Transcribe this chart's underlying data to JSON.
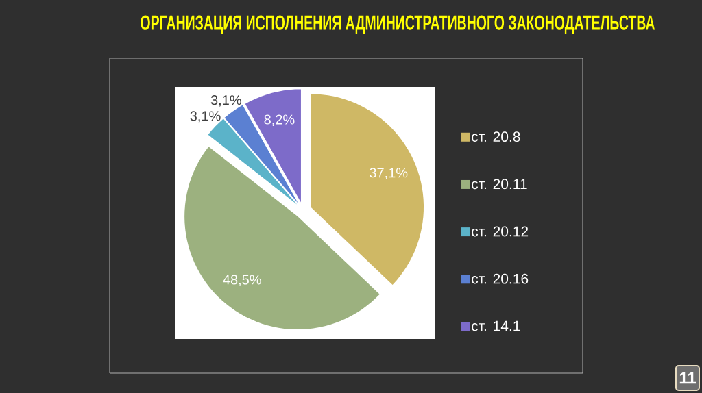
{
  "chart_data": {
    "type": "pie",
    "title": "ОРГАНИЗАЦИЯ ИСПОЛНЕНИЯ АДМИНИСТРАТИВНОГО ЗАКОНОДАТЕЛЬСТВА",
    "categories": [
      "ст. 20.8",
      "ст. 20.11",
      "ст. 20.12",
      "ст. 20.16",
      "ст. 14.1"
    ],
    "values": [
      37.1,
      48.5,
      3.1,
      3.1,
      8.2
    ],
    "colors": [
      "#cfb865",
      "#9cb17f",
      "#5bb3c9",
      "#5b80d2",
      "#7d6bc9"
    ],
    "value_labels": [
      "37,1%",
      "48,5%",
      "3,1%",
      "3,1%",
      "8,2%"
    ],
    "legend": "right",
    "annotations": [
      "11"
    ]
  }
}
